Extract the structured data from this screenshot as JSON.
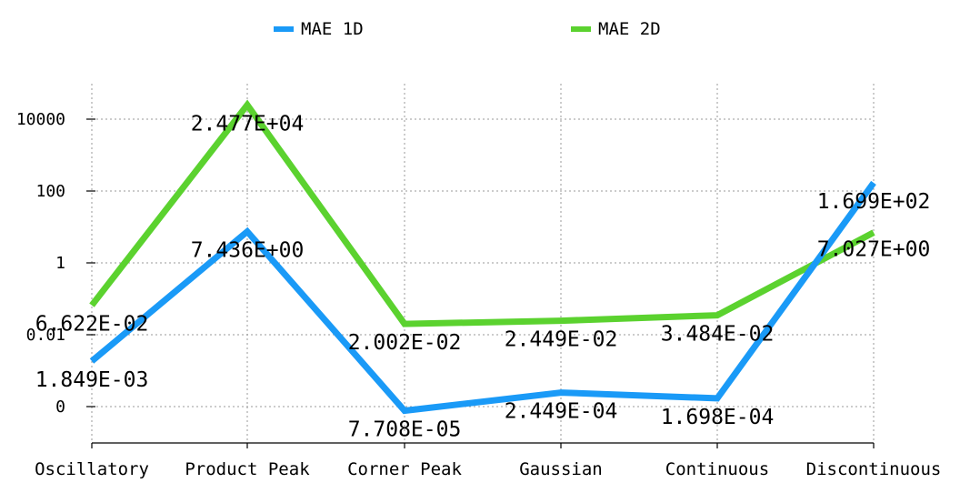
{
  "chart_data": {
    "type": "line",
    "categories": [
      "Oscillatory",
      "Product Peak",
      "Corner Peak",
      "Gaussian",
      "Continuous",
      "Discontinuous"
    ],
    "y_scale": "symlog",
    "yticks": [
      {
        "value": 0,
        "label": "0"
      },
      {
        "value": 0.01,
        "label": "0.01"
      },
      {
        "value": 1,
        "label": "1"
      },
      {
        "value": 100,
        "label": "100"
      },
      {
        "value": 10000,
        "label": "10000"
      }
    ],
    "grid": true,
    "legend_position": "top",
    "series": [
      {
        "name": "MAE 1D",
        "color": "#1a9af7",
        "values": [
          0.001849,
          7.436,
          7.708e-05,
          0.0002449,
          0.0001698,
          169.9
        ],
        "labels": [
          "1.849E-03",
          "7.436E+00",
          "7.708E-05",
          "2.449E-04",
          "1.698E-04",
          "1.699E+02"
        ]
      },
      {
        "name": "MAE 2D",
        "color": "#5bd22f",
        "values": [
          0.06622,
          24770,
          0.02002,
          0.02449,
          0.03484,
          7.027
        ],
        "labels": [
          "6.622E-02",
          "2.477E+04",
          "2.002E-02",
          "2.449E-02",
          "3.484E-02",
          "7.027E+00"
        ]
      }
    ]
  }
}
